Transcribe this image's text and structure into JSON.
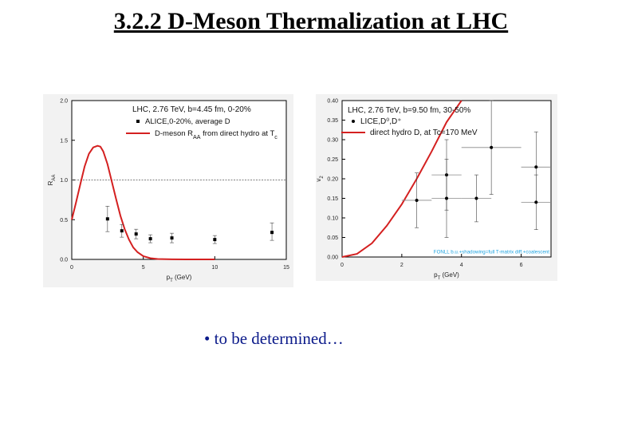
{
  "slide": {
    "title": "3.2.2 D-Meson Thermalization at LHC",
    "bullet_mark": "•",
    "bullet_text": "to be determined…"
  },
  "colors": {
    "model_line": "#d42020",
    "data_points": "#000000",
    "reference_line": "#555555",
    "bullet_text": "#0b1a8a",
    "band_label": "#1fa3e0"
  },
  "chart_data": [
    {
      "type": "line",
      "panel": "left",
      "xlabel": "p_T (GeV)",
      "ylabel": "R_AA",
      "xlim": [
        0,
        15
      ],
      "ylim": [
        0,
        2.0
      ],
      "xticks": [
        0,
        5,
        10,
        15
      ],
      "yticks": [
        0.0,
        0.5,
        1.0,
        1.5,
        2.0
      ],
      "ytick_labels": [
        "0.0",
        "0.5",
        "1.0",
        "1.5",
        "2.0"
      ],
      "reference_line_y": 1.0,
      "legend_position": "top-right",
      "legend": {
        "title": "LHC, 2.76 TeV, b=4.45 fm, 0-20%",
        "entries": [
          {
            "label": "ALICE,0-20%, average D",
            "marker": "square"
          },
          {
            "label": "D-meson R_AA from direct hydro at T_c",
            "marker": "line"
          }
        ]
      },
      "series": [
        {
          "name": "D-meson R_AA from direct hydro at T_c",
          "kind": "line",
          "x": [
            0,
            0.3,
            0.6,
            0.9,
            1.2,
            1.5,
            1.8,
            2.0,
            2.2,
            2.5,
            2.8,
            3.1,
            3.4,
            3.7,
            4.0,
            4.3,
            4.6,
            5.0,
            5.5,
            6.0,
            7.0,
            8.0,
            9.0,
            10.0
          ],
          "y": [
            0.5,
            0.72,
            0.95,
            1.17,
            1.33,
            1.41,
            1.43,
            1.42,
            1.36,
            1.2,
            0.98,
            0.76,
            0.55,
            0.38,
            0.25,
            0.15,
            0.09,
            0.04,
            0.015,
            0.005,
            0.001,
            0.0,
            0.0,
            0.0
          ]
        },
        {
          "name": "ALICE,0-20%, average D",
          "kind": "points",
          "x": [
            2.5,
            3.5,
            4.5,
            5.5,
            7.0,
            10.0,
            14.0
          ],
          "y": [
            0.51,
            0.36,
            0.32,
            0.26,
            0.27,
            0.25,
            0.34
          ],
          "yerr_low": [
            0.16,
            0.08,
            0.06,
            0.05,
            0.06,
            0.05,
            0.1
          ],
          "yerr_high": [
            0.16,
            0.08,
            0.06,
            0.05,
            0.06,
            0.05,
            0.12
          ]
        }
      ]
    },
    {
      "type": "line",
      "panel": "right",
      "xlabel": "p_T (GeV)",
      "ylabel": "v_2",
      "xlim": [
        0,
        7
      ],
      "ylim": [
        0,
        0.4
      ],
      "xticks": [
        0,
        2,
        4,
        6
      ],
      "yticks": [
        0.0,
        0.05,
        0.1,
        0.15,
        0.2,
        0.25,
        0.3,
        0.35,
        0.4
      ],
      "ytick_labels": [
        "0.00",
        "0.05",
        "0.10",
        "0.15",
        "0.20",
        "0.25",
        "0.30",
        "0.35",
        "0.40"
      ],
      "legend_position": "top-right",
      "legend": {
        "title": "LHC, 2.76 TeV, b=9.50 fm, 30-50%",
        "entries": [
          {
            "label": "LICE,D⁰,D⁺",
            "marker": "dot"
          },
          {
            "label": "direct hydro D, at Tc=170 MeV",
            "marker": "line"
          }
        ]
      },
      "band_label": "FONLL b.u.+shadowing=full T-matrix diff.+coalescent",
      "series": [
        {
          "name": "direct hydro D, at Tc=170 MeV",
          "kind": "line",
          "x": [
            0,
            0.5,
            1.0,
            1.5,
            2.0,
            2.5,
            3.0,
            3.5,
            4.0
          ],
          "y": [
            0.0,
            0.008,
            0.035,
            0.08,
            0.135,
            0.2,
            0.27,
            0.345,
            0.42
          ]
        },
        {
          "name": "LICE,D⁰,D⁺",
          "kind": "points",
          "x": [
            2.5,
            3.5,
            3.5,
            4.5,
            5.0,
            6.5,
            6.5
          ],
          "y": [
            0.145,
            0.21,
            0.15,
            0.15,
            0.28,
            0.23,
            0.14
          ],
          "xerr": [
            0.5,
            0.5,
            0.5,
            0.5,
            1.0,
            0.5,
            0.5
          ],
          "yerr": [
            0.07,
            0.09,
            0.1,
            0.06,
            0.12,
            0.09,
            0.07
          ]
        }
      ]
    }
  ]
}
